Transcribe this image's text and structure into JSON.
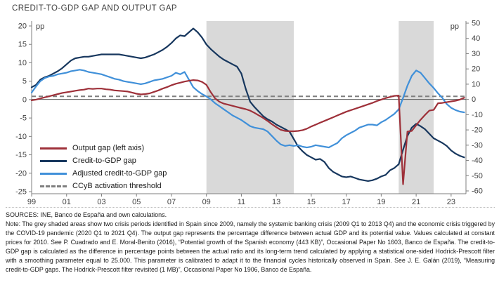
{
  "title": "CREDIT-TO-GDP GAP AND OUTPUT GAP",
  "chart_data": {
    "type": "line",
    "title": "CREDIT-TO-GDP GAP AND OUTPUT GAP",
    "x_axis": {
      "min": 1999,
      "max": 2023.85,
      "start": 1999,
      "step": 0.25,
      "tick_years": [
        1999,
        2001,
        2003,
        2005,
        2007,
        2009,
        2011,
        2013,
        2015,
        2017,
        2019,
        2021,
        2023
      ],
      "tick_labels": [
        "99",
        "01",
        "03",
        "05",
        "07",
        "09",
        "11",
        "13",
        "15",
        "17",
        "19",
        "21",
        "23"
      ]
    },
    "left_axis": {
      "unit": "pp",
      "min": -25,
      "max": 20,
      "ticks": [
        20,
        15,
        10,
        5,
        0,
        -5,
        -10,
        -15,
        -20,
        -25
      ]
    },
    "right_axis": {
      "unit": "pp",
      "min": -60,
      "max": 50,
      "ticks": [
        50,
        40,
        30,
        20,
        10,
        0,
        -10,
        -20,
        -30,
        -40,
        -50,
        -60
      ]
    },
    "grid": false,
    "band_color": "#d9d9d9",
    "crisis_bands": [
      {
        "from": 2009.0,
        "to": 2014.0
      },
      {
        "from": 2020.0,
        "to": 2022.0
      }
    ],
    "zero_line_color": "#595959",
    "axis_color": "#7f7f7f",
    "threshold": {
      "label": "CCyB activation threshold",
      "value": 2,
      "axis": "right",
      "color": "#7f7f7f"
    },
    "series": [
      {
        "name": "Output gap (left axis)",
        "axis": "left",
        "color": "#9e3039",
        "values": [
          -0.2,
          0.0,
          0.3,
          0.6,
          0.9,
          1.2,
          1.5,
          1.8,
          2.0,
          2.2,
          2.4,
          2.6,
          2.7,
          3.0,
          2.9,
          3.0,
          3.0,
          2.8,
          2.7,
          2.5,
          2.4,
          2.3,
          2.2,
          1.9,
          1.6,
          1.4,
          1.5,
          1.7,
          2.1,
          2.5,
          3.0,
          3.4,
          3.9,
          4.3,
          4.6,
          4.9,
          5.1,
          5.3,
          5.2,
          4.8,
          4.0,
          2.0,
          0.3,
          -0.6,
          -1.1,
          -1.4,
          -1.7,
          -2.0,
          -2.3,
          -2.6,
          -3.0,
          -3.6,
          -4.3,
          -5.0,
          -5.8,
          -6.7,
          -7.5,
          -8.2,
          -8.5,
          -8.6,
          -8.6,
          -8.5,
          -8.3,
          -7.9,
          -7.3,
          -6.8,
          -6.3,
          -5.8,
          -5.3,
          -4.8,
          -4.3,
          -3.8,
          -3.3,
          -2.9,
          -2.5,
          -2.1,
          -1.7,
          -1.3,
          -0.9,
          -0.4,
          0.0,
          0.4,
          0.7,
          1.0,
          1.1,
          -23.0,
          -8.7,
          -8.5,
          -7.0,
          -5.5,
          -4.2,
          -3.0,
          -2.8,
          -1.0,
          -0.9,
          -0.7,
          -0.5,
          -0.3,
          0.0,
          0.5
        ]
      },
      {
        "name": "Credit-to-GDP gap",
        "axis": "right",
        "color": "#17375e",
        "values": [
          8,
          9.5,
          13,
          14.5,
          15.5,
          17,
          18.5,
          20.5,
          23,
          25.5,
          27,
          27.5,
          28,
          28,
          28.5,
          29,
          29.5,
          29.5,
          29.5,
          29.5,
          29.5,
          29,
          28.5,
          28,
          27.5,
          27,
          27.5,
          28.5,
          29.5,
          31,
          32.5,
          34.5,
          37,
          40,
          42,
          41.5,
          44,
          46.5,
          44,
          40.5,
          36,
          33,
          30.5,
          28,
          26,
          24.5,
          23,
          21.5,
          17,
          7,
          -1.5,
          -5,
          -8,
          -11,
          -13,
          -14.5,
          -16.5,
          -18,
          -19.5,
          -21,
          -26,
          -31,
          -34,
          -36.5,
          -38,
          -39.5,
          -39,
          -41,
          -45,
          -47.5,
          -49,
          -50.5,
          -51,
          -50.5,
          -51.5,
          -52.5,
          -53,
          -53.5,
          -53,
          -52,
          -50.5,
          -49.5,
          -46.5,
          -45,
          -42.5,
          -33,
          -24,
          -18.5,
          -16,
          -17.5,
          -19.5,
          -22.5,
          -25.5,
          -27,
          -28.5,
          -30.5,
          -33.5,
          -35.5,
          -37,
          -38
        ]
      },
      {
        "name": "Adjusted credit-to-GDP gap",
        "axis": "right",
        "color": "#4090d9",
        "values": [
          4.5,
          8.5,
          12,
          14,
          15,
          15.5,
          16.5,
          17,
          17.5,
          18.5,
          19,
          19.5,
          19,
          18,
          17.5,
          17,
          16.5,
          15.5,
          14.5,
          13.5,
          13,
          12,
          11.5,
          11,
          10.5,
          10,
          10.5,
          11.5,
          12.5,
          13,
          13.5,
          14.5,
          15.5,
          17.5,
          16.5,
          18,
          13,
          8,
          5.5,
          3.5,
          2,
          0,
          -2.5,
          -4.5,
          -6.5,
          -8.5,
          -10.5,
          -12,
          -13.5,
          -15.5,
          -17.5,
          -18.5,
          -19,
          -19.5,
          -21,
          -24,
          -27,
          -29.5,
          -30.5,
          -30,
          -30.5,
          -30,
          -31,
          -31.5,
          -31,
          -30,
          -30.5,
          -31,
          -31.5,
          -30,
          -28.5,
          -25.5,
          -23.5,
          -22,
          -20.5,
          -18.5,
          -17.5,
          -16.5,
          -16.5,
          -17,
          -15,
          -13.5,
          -11.5,
          -9.5,
          -6.5,
          1,
          9,
          15.5,
          19,
          17.5,
          14,
          10.5,
          7.5,
          4,
          1,
          -3,
          -5.5,
          -7,
          -8,
          -8.5
        ]
      }
    ]
  },
  "footer": {
    "sources": "SOURCES: INE, Banco de España and own calculations.",
    "note": "Note: The grey shaded areas show two crisis periods identified in Spain since 2009, namely the systemic banking crisis (2009 Q1 to 2013 Q4) and the economic crisis triggered by the COVID-19 pandemic (2020 Q1 to 2021 Q4). The output gap represents the percentage difference between actual GDP and its potential value. Values calculated at constant prices for 2010. See P. Cuadrado and E. Moral-Benito (2016), “Potential growth of the Spanish economy  (443 KB)”, Occasional Paper No 1603, Banco de España. The credit-to-GDP gap is calculated as the difference in percentage points between the actual ratio and its long-term trend calculated by applying a statistical one-sided Hodrick-Prescott filter with a smoothing parameter equal to 25.000. This parameter is calibrated to adapt it to the financial cycles historically observed in Spain. See J. E. Galán (2019), “Measuring credit-to-GDP gaps. The Hodrick-Prescott filter revisited  (1 MB)”, Occasional Paper No 1906, Banco de España."
  }
}
